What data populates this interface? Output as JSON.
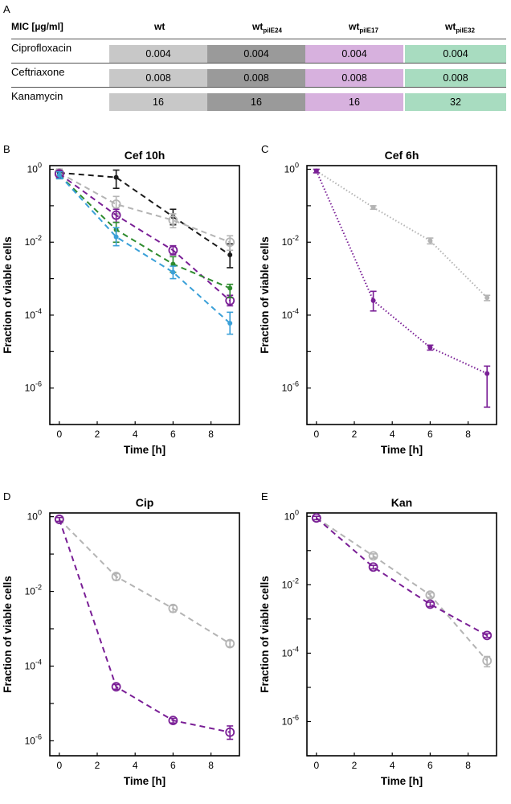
{
  "table": {
    "panel_label": "A",
    "header": "MIC [µg/ml]",
    "columns": [
      {
        "name": "wt",
        "sub": "",
        "color": "#c8c8c8"
      },
      {
        "name": "wt",
        "sub": "pilE24",
        "color": "#9a9a9a"
      },
      {
        "name": "wt",
        "sub": "pilE17",
        "color": "#d7b1de"
      },
      {
        "name": "wt",
        "sub": "pilE32",
        "color": "#a8dcc0"
      }
    ],
    "rows": [
      {
        "label": "Ciprofloxacin",
        "values": [
          "0.004",
          "0.004",
          "0.004",
          "0.004"
        ]
      },
      {
        "label": "Ceftriaxone",
        "values": [
          "0.008",
          "0.008",
          "0.008",
          "0.008"
        ]
      },
      {
        "label": "Kanamycin",
        "values": [
          "16",
          "16",
          "16",
          "32"
        ]
      }
    ]
  },
  "colors": {
    "black": "#1a1a1a",
    "gray": "#b4b4b4",
    "purple": "#7a1f96",
    "green": "#2e8b2e",
    "blue": "#3aa0d8"
  },
  "chart_data": [
    {
      "panel_label": "B",
      "type": "line",
      "title": "Cef 10h",
      "xlabel": "Time [h]",
      "ylabel": "Fraction of viable cells",
      "xlim": [
        -0.5,
        9.5
      ],
      "ylim_log10": [
        -7,
        0.1
      ],
      "xticks": [
        "0",
        "2",
        "4",
        "6",
        "8"
      ],
      "yticks": [
        {
          "base": "10",
          "exp": "0"
        },
        {
          "base": "10",
          "exp": "-2"
        },
        {
          "base": "10",
          "exp": "-4"
        },
        {
          "base": "10",
          "exp": "-6"
        }
      ],
      "series": [
        {
          "name": "wt (black)",
          "color": "black",
          "dash": "dash",
          "marker": "dot",
          "x": [
            0,
            3,
            6,
            9
          ],
          "y": [
            0.8,
            0.6,
            0.05,
            0.0045
          ],
          "err": [
            [
              0.6,
              1.0
            ],
            [
              0.3,
              0.95
            ],
            [
              0.03,
              0.08
            ],
            [
              0.002,
              0.009
            ]
          ]
        },
        {
          "name": "wt (gray)",
          "color": "gray",
          "dash": "dash",
          "marker": "circle",
          "x": [
            0,
            3,
            6,
            9
          ],
          "y": [
            0.8,
            0.11,
            0.04,
            0.01
          ],
          "err": [
            [
              0.6,
              1.0
            ],
            [
              0.06,
              0.18
            ],
            [
              0.025,
              0.06
            ],
            [
              0.006,
              0.015
            ]
          ]
        },
        {
          "name": "wt pilE17",
          "color": "purple",
          "dash": "dash",
          "marker": "circle",
          "x": [
            0,
            3,
            6,
            9
          ],
          "y": [
            0.75,
            0.055,
            0.006,
            0.00025
          ],
          "err": [
            [
              0.6,
              0.9
            ],
            [
              0.035,
              0.08
            ],
            [
              0.0045,
              0.008
            ],
            [
              0.00018,
              0.00035
            ]
          ]
        },
        {
          "name": "wt pilE32",
          "color": "green",
          "dash": "dash",
          "marker": "dot",
          "x": [
            0,
            3,
            6,
            9
          ],
          "y": [
            0.7,
            0.022,
            0.0025,
            0.00055
          ],
          "err": [
            [
              0.55,
              0.85
            ],
            [
              0.01,
              0.035
            ],
            [
              0.0015,
              0.004
            ],
            [
              0.0003,
              0.0007
            ]
          ]
        },
        {
          "name": "wt pilE24",
          "color": "blue",
          "dash": "dash",
          "marker": "dot",
          "x": [
            0,
            3,
            6,
            9
          ],
          "y": [
            0.7,
            0.014,
            0.0015,
            6e-05
          ],
          "err": [
            [
              0.55,
              0.85
            ],
            [
              0.008,
              0.025
            ],
            [
              0.001,
              0.0022
            ],
            [
              3e-05,
              0.00012
            ]
          ]
        }
      ]
    },
    {
      "panel_label": "C",
      "type": "line",
      "title": "Cef 6h",
      "xlabel": "Time [h]",
      "ylabel": "Fraction of viable cells",
      "xlim": [
        -0.5,
        9.5
      ],
      "ylim_log10": [
        -7,
        0.1
      ],
      "xticks": [
        "0",
        "2",
        "4",
        "6",
        "8"
      ],
      "yticks": [
        {
          "base": "10",
          "exp": "0"
        },
        {
          "base": "10",
          "exp": "-2"
        },
        {
          "base": "10",
          "exp": "-4"
        },
        {
          "base": "10",
          "exp": "-6"
        }
      ],
      "series": [
        {
          "name": "wt",
          "color": "gray",
          "dash": "dot",
          "marker": "dot",
          "x": [
            0,
            3,
            6,
            9
          ],
          "y": [
            0.9,
            0.09,
            0.011,
            0.0003
          ],
          "err": [
            [
              0.8,
              1.0
            ],
            [
              0.08,
              0.1
            ],
            [
              0.009,
              0.013
            ],
            [
              0.00025,
              0.00035
            ]
          ]
        },
        {
          "name": "wt pilE17",
          "color": "purple",
          "dash": "dot",
          "marker": "dot",
          "x": [
            0,
            3,
            6,
            9
          ],
          "y": [
            0.9,
            0.00025,
            1.3e-05,
            2.5e-06
          ],
          "err": [
            [
              0.8,
              1.0
            ],
            [
              0.00013,
              0.00045
            ],
            [
              1.1e-05,
              1.5e-05
            ],
            [
              3e-07,
              4e-06
            ]
          ]
        }
      ]
    },
    {
      "panel_label": "D",
      "type": "line",
      "title": "Cip",
      "xlabel": "Time [h]",
      "ylabel": "Fraction of viable cells",
      "xlim": [
        -0.5,
        9.5
      ],
      "ylim_log10": [
        -6.4,
        0.1
      ],
      "xticks": [
        "0",
        "2",
        "4",
        "6",
        "8"
      ],
      "yticks": [
        {
          "base": "10",
          "exp": "0"
        },
        {
          "base": "10",
          "exp": "-2"
        },
        {
          "base": "10",
          "exp": "-4"
        },
        {
          "base": "10",
          "exp": "-6"
        }
      ],
      "series": [
        {
          "name": "wt",
          "color": "gray",
          "dash": "dash",
          "marker": "circle",
          "x": [
            0,
            3,
            6,
            9
          ],
          "y": [
            0.85,
            0.025,
            0.0035,
            0.0004
          ],
          "err": [
            [
              0.75,
              0.95
            ],
            [
              0.02,
              0.03
            ],
            [
              0.0028,
              0.0042
            ],
            [
              0.00033,
              0.00048
            ]
          ]
        },
        {
          "name": "wt pilE17",
          "color": "purple",
          "dash": "dash",
          "marker": "circle",
          "x": [
            0,
            3,
            6,
            9
          ],
          "y": [
            0.85,
            2.8e-05,
            3.5e-06,
            1.7e-06
          ],
          "err": [
            [
              0.75,
              0.95
            ],
            [
              2.4e-05,
              3.2e-05
            ],
            [
              3e-06,
              4e-06
            ],
            [
              1.1e-06,
              2.5e-06
            ]
          ]
        }
      ]
    },
    {
      "panel_label": "E",
      "type": "line",
      "title": "Kan",
      "xlabel": "Time [h]",
      "ylabel": "Fraction of viable cells",
      "xlim": [
        -0.5,
        9.5
      ],
      "ylim_log10": [
        -7,
        0.1
      ],
      "xticks": [
        "0",
        "2",
        "4",
        "6",
        "8"
      ],
      "yticks": [
        {
          "base": "10",
          "exp": "0"
        },
        {
          "base": "10",
          "exp": "-2"
        },
        {
          "base": "10",
          "exp": "-4"
        },
        {
          "base": "10",
          "exp": "-6"
        }
      ],
      "series": [
        {
          "name": "wt",
          "color": "gray",
          "dash": "dash",
          "marker": "circle",
          "x": [
            0,
            3,
            6,
            9
          ],
          "y": [
            0.9,
            0.07,
            0.005,
            6e-05
          ],
          "err": [
            [
              0.8,
              1.0
            ],
            [
              0.06,
              0.08
            ],
            [
              0.0043,
              0.0058
            ],
            [
              4e-05,
              8e-05
            ]
          ]
        },
        {
          "name": "wt pilE17",
          "color": "purple",
          "dash": "dash",
          "marker": "circle",
          "x": [
            0,
            3,
            6,
            9
          ],
          "y": [
            0.9,
            0.033,
            0.0027,
            0.00033
          ],
          "err": [
            [
              0.8,
              1.0
            ],
            [
              0.029,
              0.037
            ],
            [
              0.0023,
              0.0031
            ],
            [
              0.00029,
              0.00037
            ]
          ]
        }
      ]
    }
  ]
}
